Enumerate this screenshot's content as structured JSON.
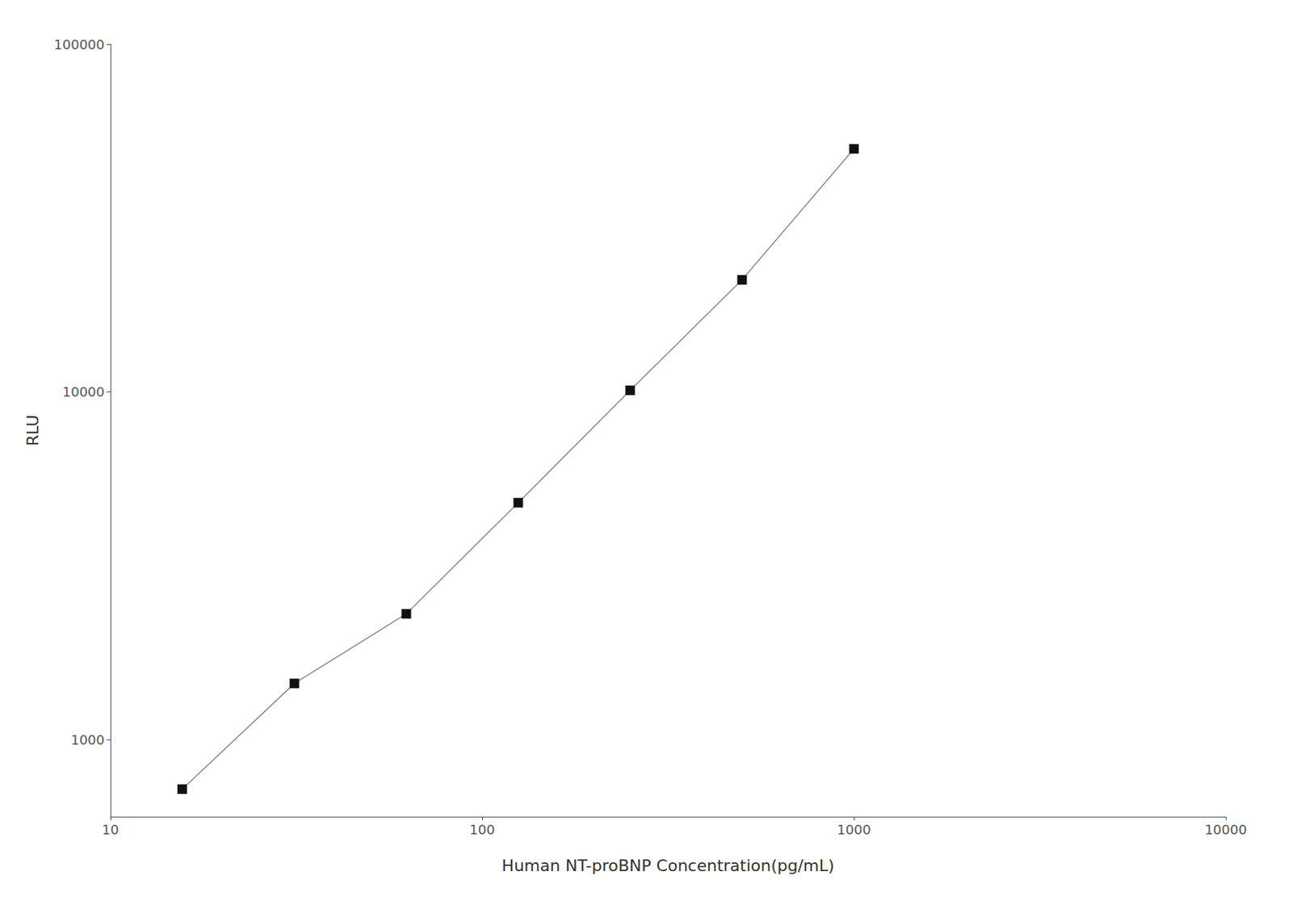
{
  "chart_data": {
    "type": "line",
    "x": [
      15.6,
      31.25,
      62.5,
      125,
      250,
      500,
      1000
    ],
    "series": [
      {
        "values": [
          720,
          1450,
          2300,
          4800,
          10100,
          21000,
          50000
        ],
        "color": "#888888",
        "colors": [
          "#111111",
          "#111111",
          "#111111",
          "#111111",
          "#111111",
          "#111111",
          "#111111"
        ],
        "marker": "square",
        "line_style": "solid"
      }
    ],
    "xlabel": "Human NT-proBNP Concentration(pg/mL)",
    "ylabel": "RLU",
    "xlim": [
      10,
      10000
    ],
    "ylim": [
      600,
      100000
    ],
    "xticks": [
      10,
      100,
      1000,
      10000
    ],
    "yticks": [
      1000,
      10000,
      100000
    ],
    "log": true,
    "grid": false
  }
}
